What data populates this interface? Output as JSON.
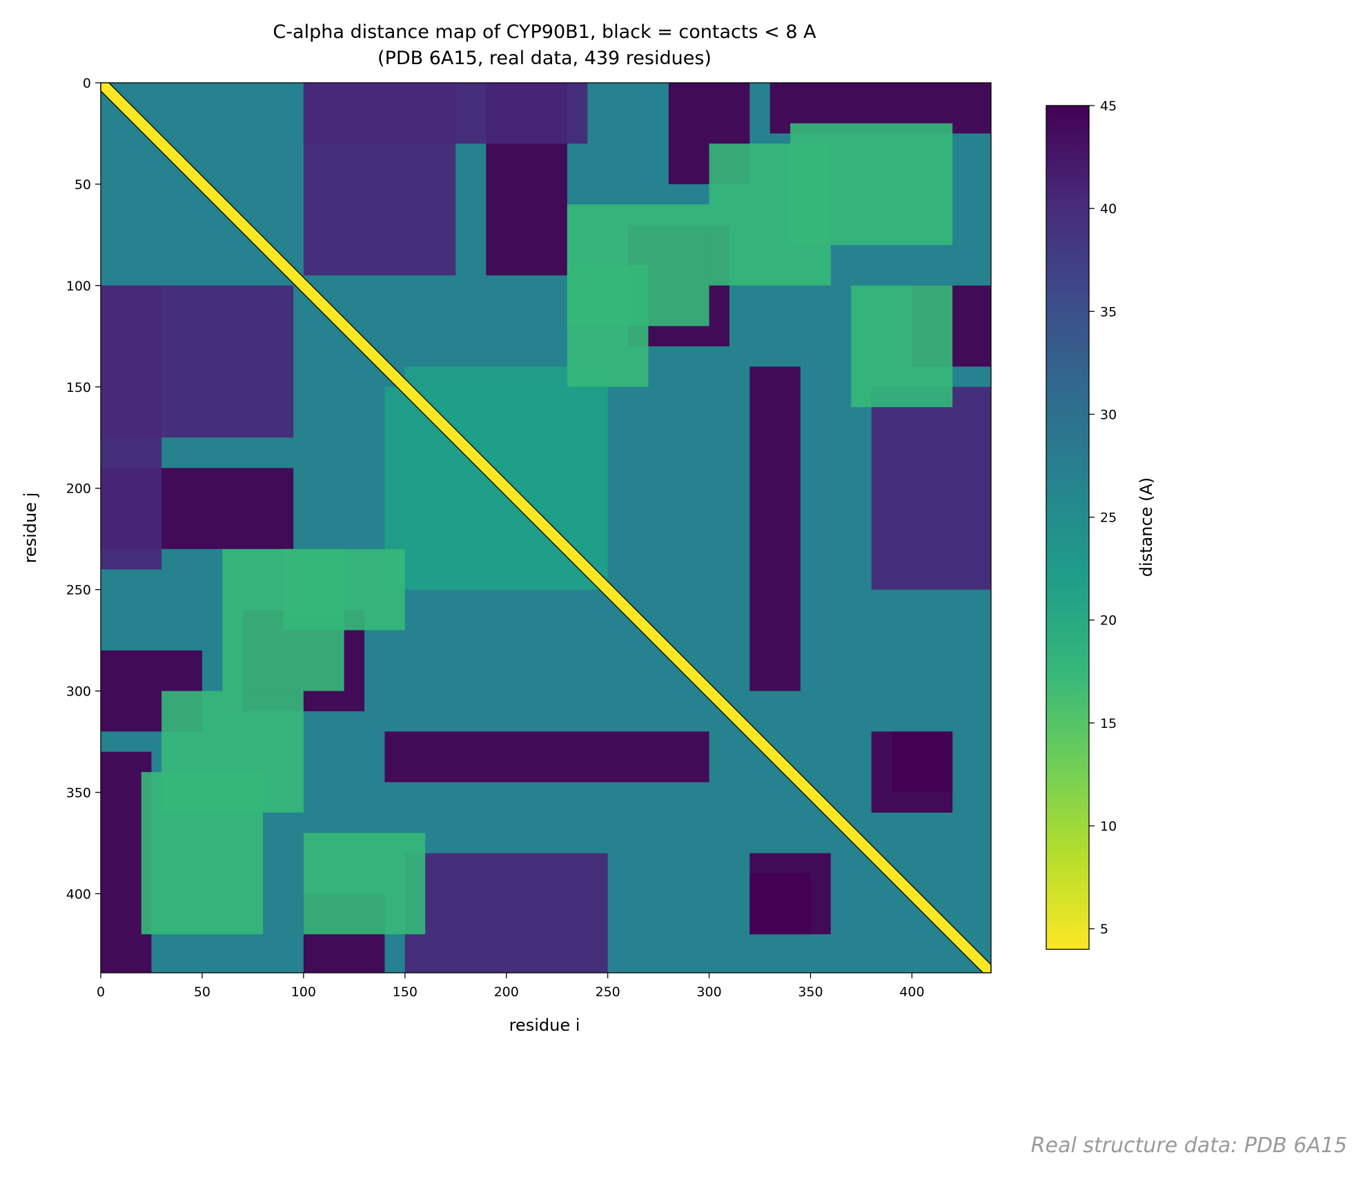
{
  "chart_data": {
    "type": "heatmap",
    "title": "C-alpha distance map of CYP90B1, black = contacts < 8 A",
    "subtitle": "(PDB 6A15, real data, 439 residues)",
    "xlabel": "residue i",
    "ylabel": "residue j",
    "n_residues": 439,
    "xlim": [
      0,
      439
    ],
    "ylim": [
      439,
      0
    ],
    "xticks": [
      0,
      50,
      100,
      150,
      200,
      250,
      300,
      350,
      400
    ],
    "yticks": [
      0,
      50,
      100,
      150,
      200,
      250,
      300,
      350,
      400
    ],
    "colorbar": {
      "label": "distance (A)",
      "range": [
        4,
        45
      ],
      "ticks": [
        5,
        10,
        15,
        20,
        25,
        30,
        35,
        40,
        45
      ],
      "colormap": [
        "#fde725",
        "#b5de2b",
        "#6ece58",
        "#35b779",
        "#1f9e89",
        "#26828e",
        "#31688e",
        "#3e4989",
        "#482878",
        "#440154"
      ]
    },
    "contour": {
      "level": 8,
      "color": "#000000"
    },
    "grid": false,
    "blocks": [
      {
        "i": [
          0,
          439
        ],
        "j": [
          0,
          439
        ],
        "value": 28
      },
      {
        "i": [
          0,
          95
        ],
        "j": [
          100,
          175
        ],
        "value": 42
      },
      {
        "i": [
          100,
          175
        ],
        "j": [
          0,
          95
        ],
        "value": 42
      },
      {
        "i": [
          0,
          95
        ],
        "j": [
          190,
          230
        ],
        "value": 44
      },
      {
        "i": [
          190,
          230
        ],
        "j": [
          0,
          95
        ],
        "value": 44
      },
      {
        "i": [
          100,
          240
        ],
        "j": [
          0,
          30
        ],
        "value": 42
      },
      {
        "i": [
          0,
          30
        ],
        "j": [
          100,
          240
        ],
        "value": 42
      },
      {
        "i": [
          280,
          320
        ],
        "j": [
          0,
          50
        ],
        "value": 45
      },
      {
        "i": [
          0,
          50
        ],
        "j": [
          280,
          320
        ],
        "value": 45
      },
      {
        "i": [
          330,
          439
        ],
        "j": [
          0,
          25
        ],
        "value": 45
      },
      {
        "i": [
          0,
          25
        ],
        "j": [
          330,
          439
        ],
        "value": 45
      },
      {
        "i": [
          320,
          345
        ],
        "j": [
          140,
          300
        ],
        "value": 43
      },
      {
        "i": [
          140,
          300
        ],
        "j": [
          320,
          345
        ],
        "value": 43
      },
      {
        "i": [
          320,
          350
        ],
        "j": [
          390,
          420
        ],
        "value": 45
      },
      {
        "i": [
          390,
          420
        ],
        "j": [
          320,
          350
        ],
        "value": 45
      },
      {
        "i": [
          260,
          310
        ],
        "j": [
          70,
          130
        ],
        "value": 43
      },
      {
        "i": [
          70,
          130
        ],
        "j": [
          260,
          310
        ],
        "value": 43
      },
      {
        "i": [
          380,
          439
        ],
        "j": [
          150,
          250
        ],
        "value": 40
      },
      {
        "i": [
          150,
          250
        ],
        "j": [
          380,
          439
        ],
        "value": 40
      },
      {
        "i": [
          380,
          420
        ],
        "j": [
          320,
          360
        ],
        "value": 43
      },
      {
        "i": [
          320,
          360
        ],
        "j": [
          380,
          420
        ],
        "value": 43
      },
      {
        "i": [
          400,
          439
        ],
        "j": [
          100,
          140
        ],
        "value": 44
      },
      {
        "i": [
          100,
          140
        ],
        "j": [
          400,
          439
        ],
        "value": 44
      },
      {
        "i": [
          150,
          250
        ],
        "j": [
          140,
          250
        ],
        "value": 24
      },
      {
        "i": [
          140,
          250
        ],
        "j": [
          150,
          250
        ],
        "value": 24
      },
      {
        "i": [
          30,
          100
        ],
        "j": [
          300,
          360
        ],
        "value": 16
      },
      {
        "i": [
          300,
          360
        ],
        "j": [
          30,
          100
        ],
        "value": 16
      },
      {
        "i": [
          340,
          420
        ],
        "j": [
          20,
          80
        ],
        "value": 16
      },
      {
        "i": [
          20,
          80
        ],
        "j": [
          340,
          420
        ],
        "value": 16
      },
      {
        "i": [
          230,
          300
        ],
        "j": [
          60,
          120
        ],
        "value": 18
      },
      {
        "i": [
          60,
          120
        ],
        "j": [
          230,
          300
        ],
        "value": 18
      },
      {
        "i": [
          370,
          420
        ],
        "j": [
          100,
          160
        ],
        "value": 16
      },
      {
        "i": [
          100,
          160
        ],
        "j": [
          370,
          420
        ],
        "value": 16
      },
      {
        "i": [
          90,
          150
        ],
        "j": [
          230,
          270
        ],
        "value": 16
      },
      {
        "i": [
          230,
          270
        ],
        "j": [
          90,
          150
        ],
        "value": 16
      }
    ],
    "diagonal_band_width": 4,
    "watermark": "Real structure data: PDB 6A15"
  }
}
